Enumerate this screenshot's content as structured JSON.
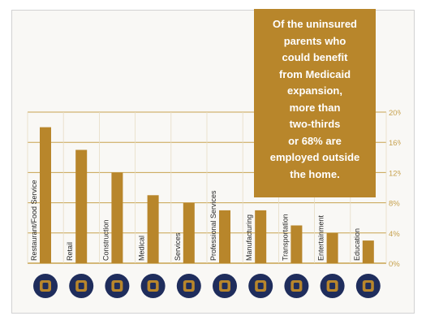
{
  "chart_data": {
    "type": "bar",
    "title": "",
    "xlabel": "",
    "ylabel": "",
    "categories": [
      "Restaurant/Food Service",
      "Retail",
      "Construction",
      "Medical",
      "Services",
      "Professional Services",
      "Manufacturing",
      "Transportation",
      "Entertainment",
      "Education"
    ],
    "values": [
      18,
      15,
      12,
      9,
      8,
      7,
      7,
      5,
      4,
      3
    ],
    "ylim": [
      0,
      20
    ],
    "y_ticks": [
      "0%",
      "4%",
      "8%",
      "12%",
      "16%",
      "20%"
    ],
    "y_tick_values": [
      0,
      4,
      8,
      12,
      16,
      20
    ],
    "y_axis_side": "right",
    "grid": true,
    "bar_color": "#b8862b",
    "grid_color": "#c7a24f",
    "icons": [
      "utensils-icon",
      "shopping-bag-icon",
      "scaffolding-icon",
      "medical-heart-icon",
      "service-tools-icon",
      "briefcase-icon",
      "factory-hand-icon",
      "bus-icon",
      "film-reel-icon",
      "book-icon"
    ],
    "icon_bg_color": "#1f2d5c"
  },
  "callout": {
    "lines": [
      "Of the uninsured",
      "parents who",
      "could benefit",
      "from Medicaid",
      "expansion,",
      "more than",
      "two-thirds",
      "or 68% are",
      "employed outside",
      "the home."
    ]
  }
}
